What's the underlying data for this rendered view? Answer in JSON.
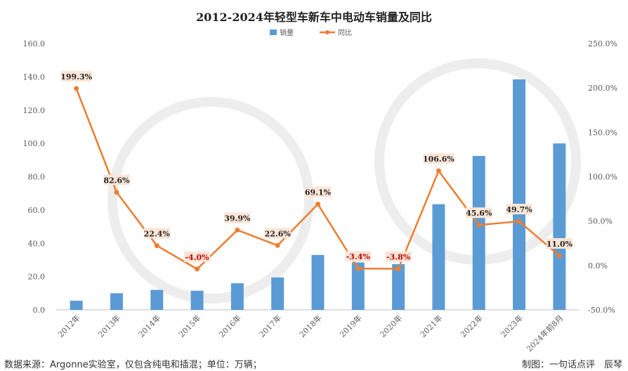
{
  "chart_data": {
    "type": "bar+line",
    "title": "2012-2024年轻型车新车中电动车销量及同比",
    "categories": [
      "2012年",
      "2013年",
      "2014年",
      "2015年",
      "2016年",
      "2017年",
      "2018年",
      "2019年",
      "2020年",
      "2021年",
      "2022年",
      "2023年",
      "2024年前8月"
    ],
    "series": [
      {
        "name": "销量",
        "type": "bar",
        "axis": "left",
        "color": "#5b9bd5",
        "values": [
          5.5,
          10.0,
          12.0,
          11.5,
          16.0,
          19.5,
          33.0,
          28.5,
          27.5,
          63.5,
          92.5,
          138.5,
          100.0
        ]
      },
      {
        "name": "同比",
        "type": "line",
        "axis": "right",
        "color": "#ed7d31",
        "values": [
          199.3,
          82.6,
          22.4,
          -4.0,
          39.9,
          22.6,
          69.1,
          -3.4,
          -3.8,
          106.6,
          45.6,
          49.7,
          11.0
        ],
        "labels": [
          "199.3%",
          "82.6%",
          "22.4%",
          "-4.0%",
          "39.9%",
          "22.6%",
          "69.1%",
          "-3.4%",
          "-3.8%",
          "106.6%",
          "45.6%",
          "49.7%",
          "11.0%"
        ]
      }
    ],
    "y_left": {
      "min": 0,
      "max": 160,
      "step": 20,
      "ticks": [
        "0.0",
        "20.0",
        "40.0",
        "60.0",
        "80.0",
        "100.0",
        "120.0",
        "140.0",
        "160.0"
      ]
    },
    "y_right": {
      "min": -50,
      "max": 250,
      "step": 50,
      "ticks": [
        "-50.0%",
        "0.0%",
        "50.0%",
        "100.0%",
        "150.0%",
        "200.0%",
        "250.0%"
      ]
    },
    "grid": false,
    "legend_position": "top-center"
  },
  "footer": {
    "source": "数据来源：Argonne实验室，仅包含纯电和插混；单位：万辆；",
    "credit": "制图：一句话点评　辰琴"
  }
}
